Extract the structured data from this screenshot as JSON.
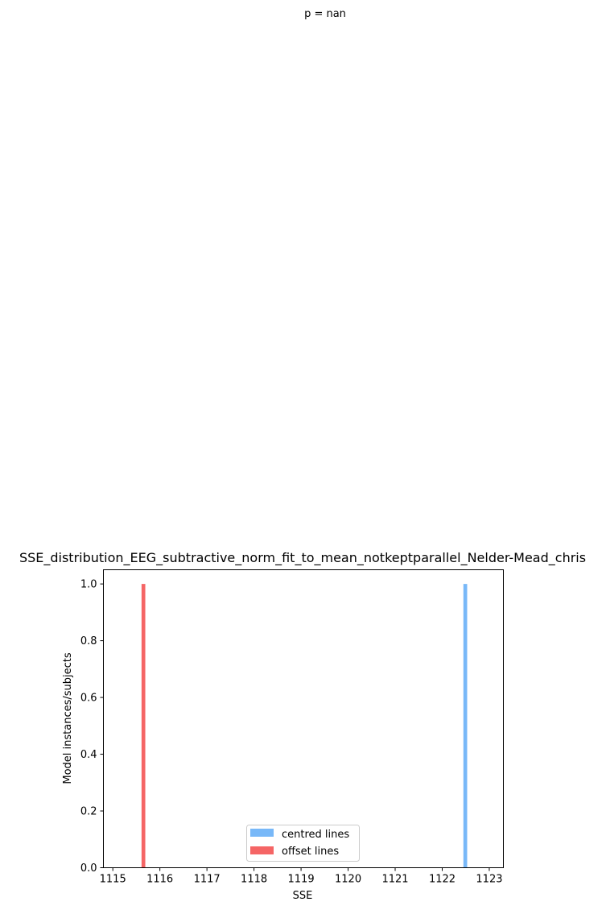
{
  "figure": {
    "suptitle": "p = nan"
  },
  "chart_data": {
    "type": "bar",
    "title": "SSE_distribution_EEG_subtractive_norm_fit_to_mean_notkeptparallel_Nelder-Mead_chris",
    "xlabel": "SSE",
    "ylabel": "Model instances/subjects",
    "xlim": [
      1114.8,
      1123.3
    ],
    "ylim": [
      0,
      1.05
    ],
    "xticks": [
      1115,
      1116,
      1117,
      1118,
      1119,
      1120,
      1121,
      1122,
      1123
    ],
    "yticks": [
      0.0,
      0.2,
      0.4,
      0.6,
      0.8,
      1.0
    ],
    "grid": false,
    "legend_position": "bottom-center",
    "series": [
      {
        "name": "centred lines",
        "color": "#78b8f8",
        "bars": [
          {
            "x_start": 1122.45,
            "x_end": 1122.53,
            "value": 1.0
          }
        ]
      },
      {
        "name": "offset lines",
        "color": "#f56565",
        "bars": [
          {
            "x_start": 1115.61,
            "x_end": 1115.69,
            "value": 1.0
          }
        ]
      }
    ]
  }
}
